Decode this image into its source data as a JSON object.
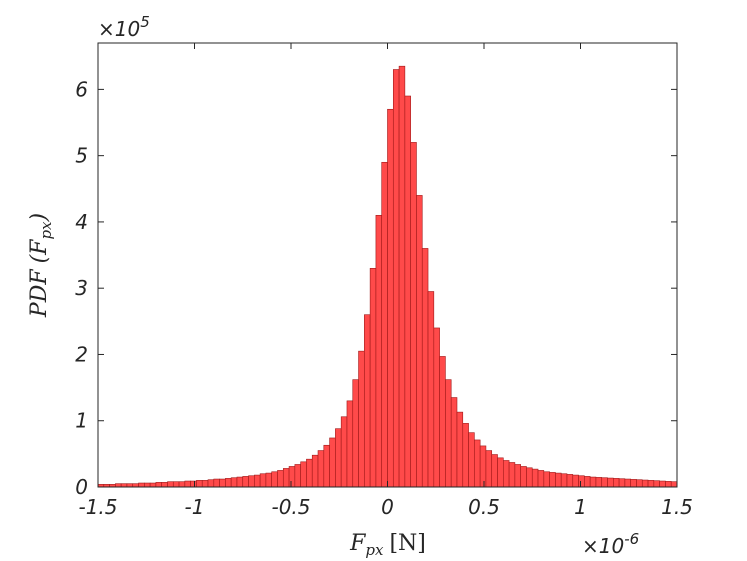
{
  "chart_data": {
    "type": "histogram",
    "color": "#ff4a4a",
    "edgecolor": "#a01818",
    "bins": [
      -1.5,
      -1.47,
      -1.44,
      -1.41,
      -1.38,
      -1.35,
      -1.32,
      -1.29,
      -1.26,
      -1.23,
      -1.2,
      -1.17,
      -1.14,
      -1.11,
      -1.08,
      -1.05,
      -1.02,
      -0.99,
      -0.96,
      -0.93,
      -0.9,
      -0.87,
      -0.84,
      -0.81,
      -0.78,
      -0.75,
      -0.72,
      -0.69,
      -0.66,
      -0.63,
      -0.6,
      -0.57,
      -0.54,
      -0.51,
      -0.48,
      -0.45,
      -0.42,
      -0.39,
      -0.36,
      -0.33,
      -0.3,
      -0.27,
      -0.24,
      -0.21,
      -0.18,
      -0.15,
      -0.12,
      -0.09,
      -0.06,
      -0.03,
      0,
      0.03,
      0.06,
      0.09,
      0.12,
      0.15,
      0.18,
      0.21,
      0.24,
      0.27,
      0.3,
      0.33,
      0.36,
      0.39,
      0.42,
      0.45,
      0.48,
      0.51,
      0.54,
      0.57,
      0.6,
      0.63,
      0.66,
      0.69,
      0.72,
      0.75,
      0.78,
      0.81,
      0.84,
      0.87,
      0.9,
      0.93,
      0.96,
      0.99,
      1.02,
      1.05,
      1.08,
      1.11,
      1.14,
      1.17,
      1.2,
      1.23,
      1.26,
      1.29,
      1.32,
      1.35,
      1.38,
      1.41,
      1.44,
      1.47,
      1.5
    ],
    "values": [
      0.04,
      0.04,
      0.04,
      0.05,
      0.05,
      0.05,
      0.05,
      0.06,
      0.06,
      0.06,
      0.07,
      0.07,
      0.08,
      0.08,
      0.08,
      0.09,
      0.09,
      0.1,
      0.1,
      0.11,
      0.12,
      0.12,
      0.13,
      0.14,
      0.15,
      0.16,
      0.17,
      0.18,
      0.2,
      0.21,
      0.23,
      0.25,
      0.28,
      0.31,
      0.34,
      0.38,
      0.42,
      0.48,
      0.55,
      0.63,
      0.74,
      0.88,
      1.06,
      1.3,
      1.62,
      2.05,
      2.6,
      3.3,
      4.1,
      4.9,
      5.7,
      6.3,
      6.35,
      5.9,
      5.2,
      4.4,
      3.6,
      2.95,
      2.4,
      1.97,
      1.62,
      1.35,
      1.13,
      0.96,
      0.82,
      0.71,
      0.62,
      0.55,
      0.49,
      0.44,
      0.4,
      0.37,
      0.34,
      0.31,
      0.29,
      0.27,
      0.25,
      0.23,
      0.22,
      0.21,
      0.2,
      0.19,
      0.18,
      0.17,
      0.16,
      0.15,
      0.145,
      0.14,
      0.135,
      0.13,
      0.125,
      0.12,
      0.115,
      0.11,
      0.105,
      0.1,
      0.095,
      0.09,
      0.085,
      0.08
    ],
    "xlim": [
      -1.5,
      1.5
    ],
    "xticks": [
      -1.5,
      -1,
      -0.5,
      0,
      0.5,
      1,
      1.5
    ],
    "ylim": [
      0,
      6.7
    ],
    "yticks": [
      0,
      1,
      2,
      3,
      4,
      5,
      6
    ],
    "x_multiplier": {
      "base": "×10",
      "exponent": "-6"
    },
    "y_multiplier": {
      "base": "×10",
      "exponent": "5"
    },
    "xlabel": {
      "symbol": "F",
      "subscript": "px",
      "unit": "[N]"
    },
    "ylabel": {
      "name": "PDF",
      "open": "(F",
      "subscript": "px",
      "close": ")"
    }
  }
}
